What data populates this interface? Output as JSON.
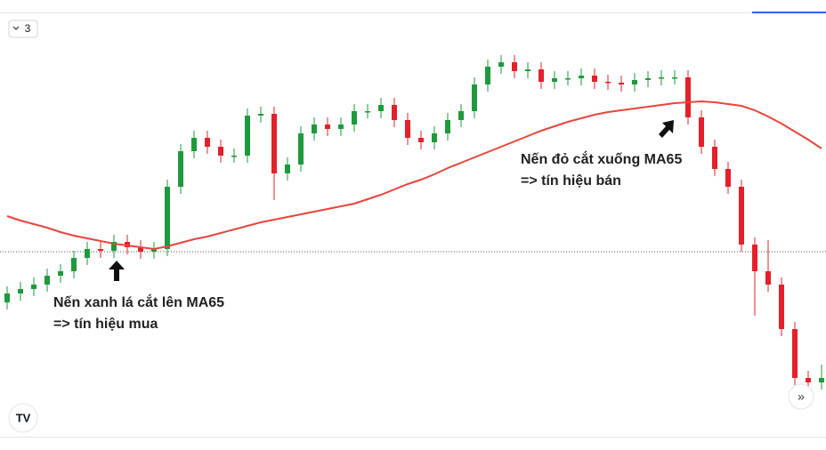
{
  "interval_label": "3",
  "chart_data": {
    "type": "candlestick",
    "ylim": [
      0,
      475
    ],
    "colors": {
      "up": "#1e9a3c",
      "down": "#e5202a"
    },
    "open": [
      150,
      160,
      165,
      170,
      180,
      185,
      200,
      210,
      208,
      218,
      212,
      207,
      210,
      280,
      320,
      335,
      325,
      315,
      315,
      360,
      362,
      295,
      305,
      340,
      350,
      345,
      350,
      365,
      365,
      372,
      355,
      335,
      330,
      340,
      355,
      365,
      395,
      415,
      420,
      410,
      412,
      398,
      402,
      402,
      405,
      398,
      397,
      395,
      400,
      402,
      403,
      403,
      358,
      325,
      300,
      280,
      215,
      185,
      170,
      120,
      65,
      60
    ],
    "high": [
      168,
      173,
      178,
      188,
      193,
      208,
      218,
      218,
      226,
      226,
      220,
      218,
      288,
      328,
      343,
      343,
      333,
      323,
      368,
      370,
      370,
      313,
      348,
      358,
      358,
      358,
      373,
      373,
      380,
      380,
      363,
      343,
      348,
      363,
      373,
      403,
      423,
      428,
      428,
      420,
      420,
      410,
      410,
      413,
      413,
      406,
      405,
      408,
      410,
      411,
      411,
      411,
      366,
      333,
      308,
      288,
      223,
      220,
      178,
      128,
      73,
      80
    ],
    "low": [
      142,
      152,
      157,
      162,
      172,
      177,
      192,
      200,
      200,
      204,
      199,
      199,
      202,
      272,
      312,
      317,
      307,
      307,
      307,
      352,
      265,
      287,
      297,
      332,
      337,
      337,
      342,
      357,
      357,
      347,
      327,
      322,
      322,
      332,
      347,
      357,
      387,
      407,
      402,
      402,
      390,
      390,
      394,
      394,
      390,
      389,
      387,
      387,
      392,
      394,
      395,
      350,
      317,
      292,
      272,
      207,
      135,
      162,
      112,
      57,
      52,
      52
    ],
    "close": [
      160,
      165,
      170,
      180,
      185,
      200,
      210,
      208,
      218,
      212,
      207,
      210,
      280,
      320,
      335,
      325,
      315,
      315,
      360,
      362,
      295,
      305,
      340,
      350,
      345,
      350,
      365,
      365,
      372,
      355,
      335,
      330,
      340,
      355,
      365,
      395,
      415,
      420,
      410,
      412,
      398,
      402,
      402,
      405,
      398,
      397,
      395,
      400,
      402,
      403,
      403,
      358,
      325,
      300,
      280,
      215,
      185,
      170,
      120,
      65,
      60,
      65
    ],
    "ma": {
      "color": "#e8453c",
      "values": [
        247,
        242,
        238,
        234,
        229,
        225,
        222,
        219,
        216,
        214,
        212,
        210,
        213,
        217,
        221,
        224,
        228,
        232,
        236,
        240,
        243,
        246,
        249,
        252,
        255,
        258,
        261,
        266,
        271,
        277,
        283,
        288,
        294,
        301,
        307,
        313,
        319,
        325,
        331,
        337,
        343,
        348,
        353,
        357,
        361,
        364,
        366,
        368,
        370,
        372,
        374,
        375,
        376,
        375,
        373,
        371,
        366,
        359,
        351,
        342,
        333,
        323
      ]
    },
    "reference_line": 207,
    "annotations": [
      {
        "lines": [
          "Nến xanh lá cắt lên MA65",
          "=> tín hiệu mua"
        ]
      },
      {
        "lines": [
          "Nến đỏ cắt xuống MA65",
          "=> tín hiệu bán"
        ]
      }
    ]
  }
}
